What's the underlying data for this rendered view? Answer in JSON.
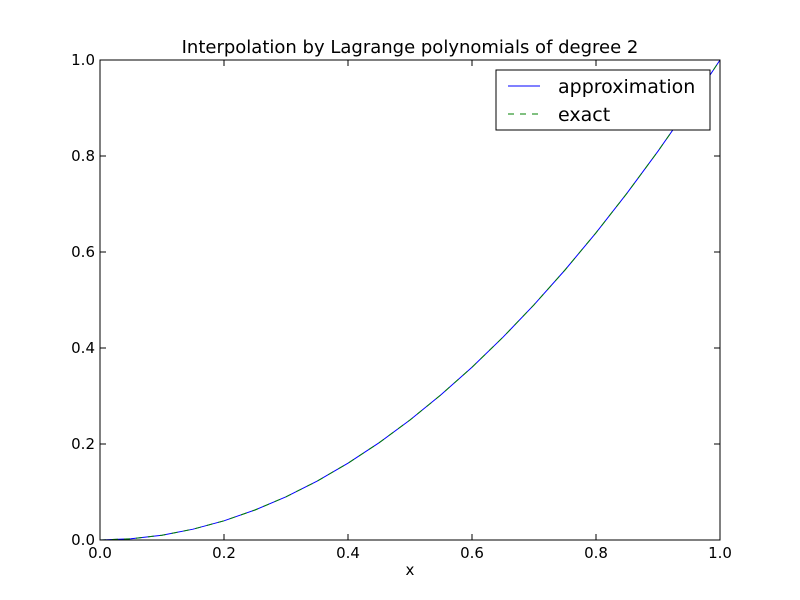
{
  "chart_data": {
    "type": "line",
    "title": "Interpolation by Lagrange polynomials of degree 2",
    "xlabel": "x",
    "ylabel": "",
    "xlim": [
      0.0,
      1.0
    ],
    "ylim": [
      0.0,
      1.0
    ],
    "grid": false,
    "legend_position": "top-right",
    "x_ticks": [
      "0.0",
      "0.2",
      "0.4",
      "0.6",
      "0.8",
      "1.0"
    ],
    "y_ticks": [
      "0.0",
      "0.2",
      "0.4",
      "0.6",
      "0.8",
      "1.0"
    ],
    "x": [
      0.0,
      0.05,
      0.1,
      0.15,
      0.2,
      0.25,
      0.3,
      0.35,
      0.4,
      0.45,
      0.5,
      0.55,
      0.6,
      0.65,
      0.7,
      0.75,
      0.8,
      0.85,
      0.9,
      0.95,
      1.0
    ],
    "series": [
      {
        "name": "approximation",
        "color": "#0000ff",
        "style": "solid",
        "values": [
          0.0,
          0.0025,
          0.01,
          0.0225,
          0.04,
          0.0625,
          0.09,
          0.1225,
          0.16,
          0.2025,
          0.25,
          0.3025,
          0.36,
          0.4225,
          0.49,
          0.5625,
          0.64,
          0.7225,
          0.81,
          0.9025,
          1.0
        ]
      },
      {
        "name": "exact",
        "color": "#008000",
        "style": "dashed",
        "values": [
          0.0,
          0.0025,
          0.01,
          0.0225,
          0.04,
          0.0625,
          0.09,
          0.1225,
          0.16,
          0.2025,
          0.25,
          0.3025,
          0.36,
          0.4225,
          0.49,
          0.5625,
          0.64,
          0.7225,
          0.81,
          0.9025,
          1.0
        ]
      }
    ]
  }
}
